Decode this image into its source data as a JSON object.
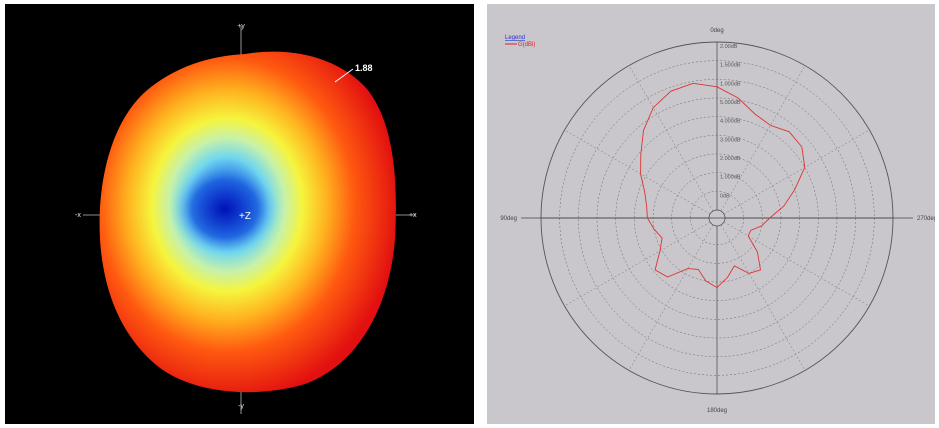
{
  "left_panel": {
    "axis_labels": {
      "plus_y": "+y",
      "minus_y": "-y",
      "plus_x": "+x",
      "minus_x": "-x",
      "plus_z": "+Z"
    },
    "max_value_label": "1.88"
  },
  "chart_data": {
    "type": "polar",
    "legend": {
      "title": "Legend",
      "entries": [
        "G(dBi)"
      ]
    },
    "direction_labels": {
      "top": "0deg",
      "left": "90deg",
      "bottom": "180deg",
      "right": "270deg"
    },
    "radial_tick_labels": [
      "2.00dB",
      "1.500dB",
      "1.000dB",
      "5.000dB",
      "4.000dB",
      "3.000dB",
      "2.000dB",
      "1.000dB",
      "0dB"
    ],
    "rlim": [
      0,
      9
    ],
    "grid": true,
    "series": [
      {
        "color": "#dd3333",
        "theta_deg": [
          0,
          10,
          20,
          30,
          40,
          50,
          60,
          70,
          80,
          90,
          100,
          110,
          120,
          130,
          140,
          150,
          160,
          170,
          180,
          190,
          200,
          210,
          220,
          230,
          240,
          250,
          260,
          270,
          280,
          290,
          300,
          310,
          320,
          330,
          340,
          350
        ],
        "r": [
          6.6,
          6.9,
          6.8,
          6.4,
          5.7,
          4.9,
          4.3,
          3.7,
          3.4,
          3.3,
          3.0,
          2.7,
          3.1,
          3.9,
          3.7,
          2.7,
          2.5,
          3.0,
          3.3,
          2.8,
          2.3,
          3.0,
          3.2,
          2.4,
          1.5,
          1.5,
          2.0,
          2.4,
          3.2,
          4.0,
          5.0,
          5.5,
          5.6,
          5.3,
          5.5,
          6.1
        ]
      }
    ]
  }
}
